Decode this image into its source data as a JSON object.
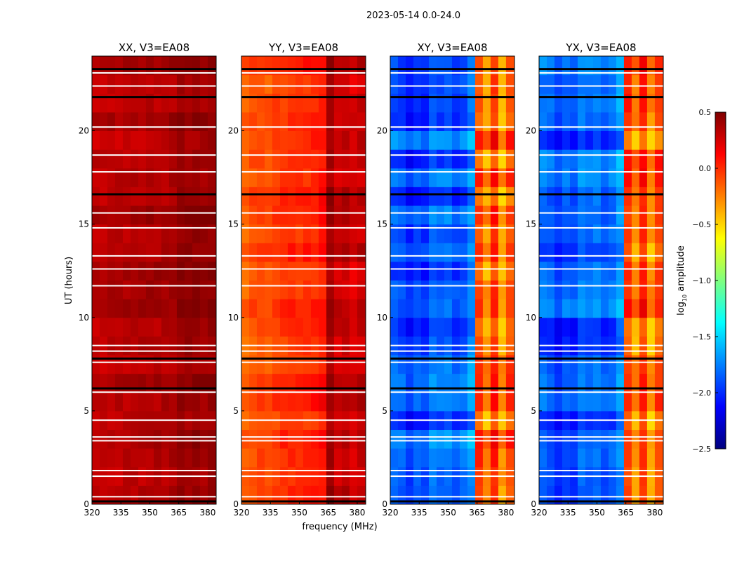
{
  "chart_data": {
    "type": "heatmap",
    "title": "2023-05-14 0.0-24.0",
    "xlabel": "frequency (MHz)",
    "ylabel": "UT (hours)",
    "xlim": [
      320,
      384.4
    ],
    "ylim": [
      0,
      24
    ],
    "xticks": [
      320,
      335,
      350,
      365,
      380
    ],
    "yticks": [
      0,
      5,
      10,
      15,
      20
    ],
    "freq_bins_mhz": [
      320,
      324,
      328,
      332,
      336,
      340,
      344,
      348,
      352,
      356,
      360,
      364,
      368,
      372,
      376,
      380
    ],
    "panels": [
      {
        "title": "XX, V3=EA08",
        "levels": [
          0.33,
          0.33,
          0.34,
          0.34,
          0.35,
          0.35,
          0.35,
          0.36,
          0.36,
          0.37,
          0.38,
          0.45,
          0.43,
          0.45,
          0.42,
          0.44
        ]
      },
      {
        "title": "YY, V3=EA08",
        "levels": [
          -0.15,
          -0.1,
          -0.08,
          -0.1,
          -0.05,
          -0.02,
          0.0,
          0.0,
          0.02,
          0.03,
          0.08,
          0.4,
          0.28,
          0.32,
          0.25,
          0.3
        ]
      },
      {
        "title": "XY, V3=EA08",
        "levels": [
          -1.85,
          -1.9,
          -2.0,
          -1.9,
          -1.95,
          -1.8,
          -1.85,
          -1.8,
          -1.9,
          -1.85,
          -1.7,
          -0.05,
          -0.3,
          0.0,
          -0.35,
          -0.1
        ]
      },
      {
        "title": "YX, V3=EA08",
        "levels": [
          -1.85,
          -1.9,
          -2.0,
          -1.9,
          -1.95,
          -1.8,
          -1.85,
          -1.8,
          -1.9,
          -1.85,
          -1.7,
          -0.05,
          -0.3,
          0.0,
          -0.35,
          -0.1
        ]
      }
    ],
    "flagged_times_white": [
      0.4,
      1.5,
      1.8,
      3.4,
      3.6,
      4.5,
      6.0,
      7.6,
      8.2,
      8.5,
      11.7,
      12.6,
      13.3,
      14.8,
      15.6,
      17.8,
      18.7,
      20.2,
      22.4,
      23.1
    ],
    "flagged_times_black": [
      0.15,
      6.2,
      7.8,
      16.6,
      21.8,
      23.3
    ],
    "colorbar": {
      "label": "log10 amplitude",
      "label_base": "log",
      "label_sub": "10",
      "label_rest": " amplitude",
      "range": [
        -2.5,
        0.5
      ],
      "ticks": [
        -2.5,
        -2.0,
        -1.5,
        -1.0,
        -0.5,
        0.0,
        0.5
      ],
      "tick_labels": [
        "−2.5",
        "−2.0",
        "−1.5",
        "−1.0",
        "−0.5",
        "0.0",
        "0.5"
      ],
      "colormap": "jet"
    }
  }
}
